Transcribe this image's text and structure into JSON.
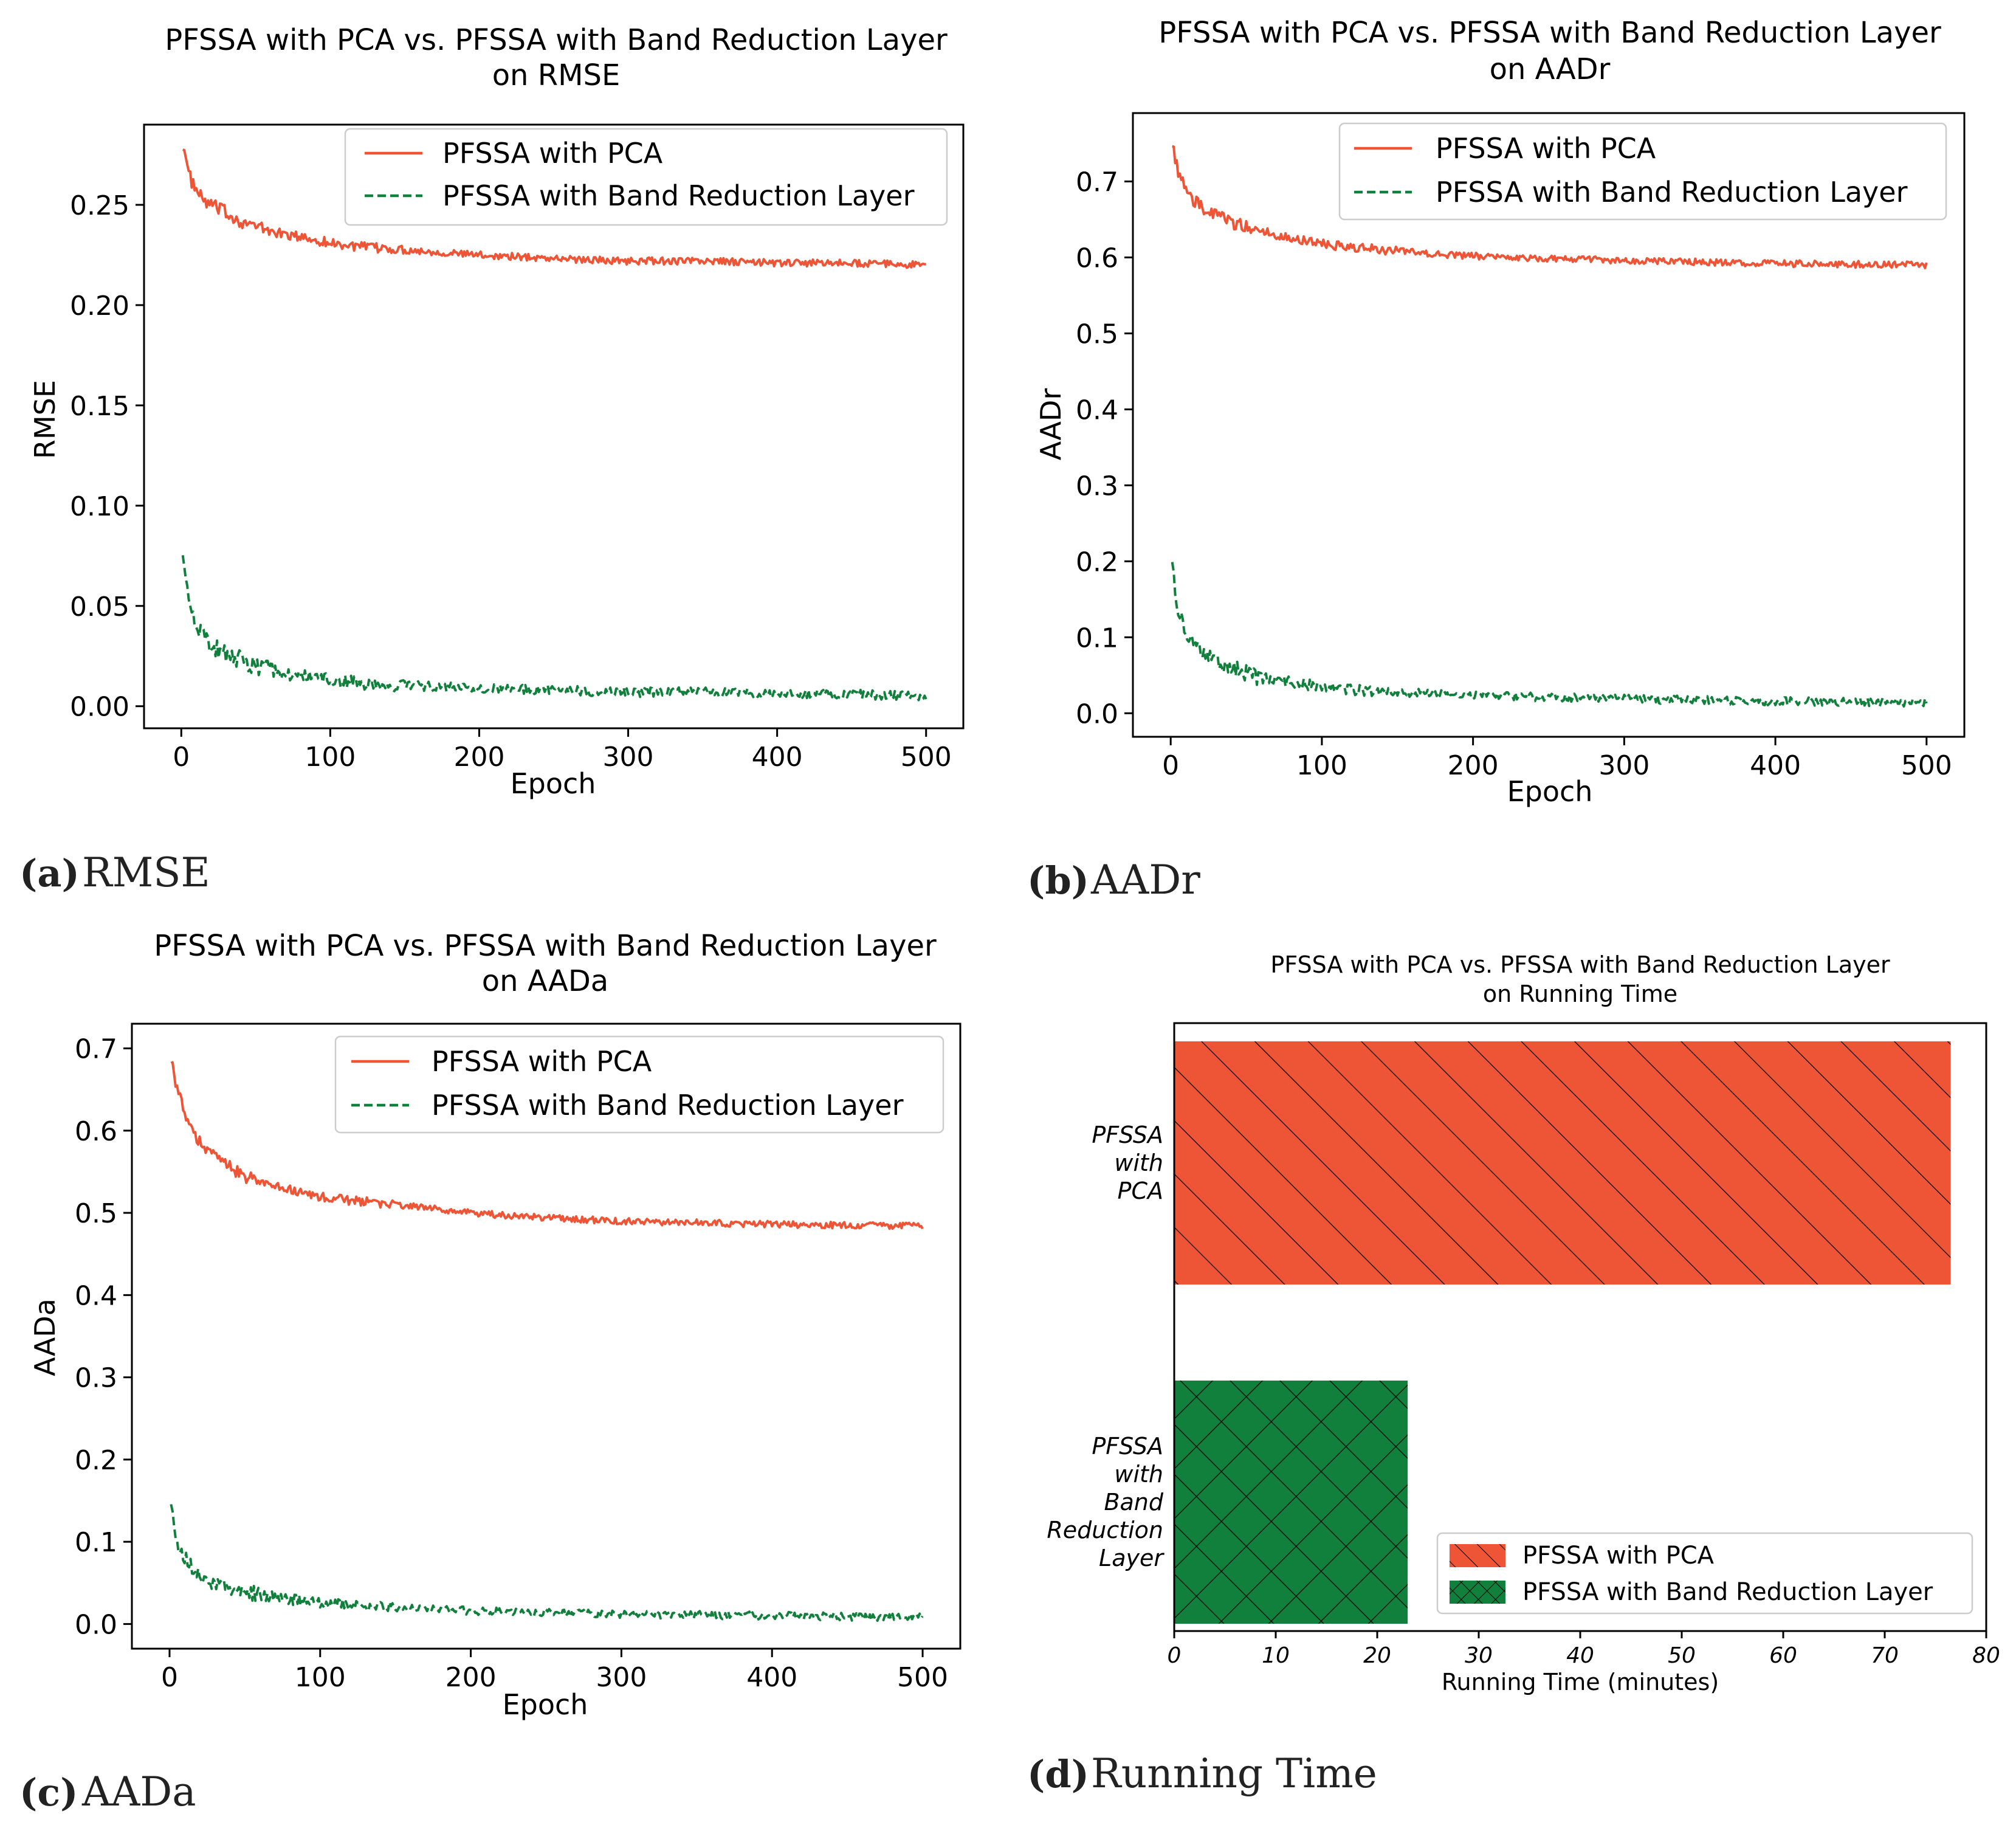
{
  "colors": {
    "pca": "#ee5536",
    "brl": "#11803c"
  },
  "charts": [
    {
      "id": "a",
      "type": "line",
      "title": [
        "PFSSA with PCA vs. PFSSA with Band Reduction Layer",
        "on RMSE"
      ],
      "xlabel": "Epoch",
      "ylabel": "RMSE",
      "xlim": [
        -25,
        525
      ],
      "ylim": [
        -0.011,
        0.29
      ],
      "xticks": [
        0,
        100,
        200,
        300,
        400,
        500
      ],
      "xtick_labels": [
        "0",
        "100",
        "200",
        "300",
        "400",
        "500"
      ],
      "yticks": [
        0.0,
        0.05,
        0.1,
        0.15,
        0.2,
        0.25
      ],
      "ytick_labels": [
        "0.00",
        "0.05",
        "0.10",
        "0.15",
        "0.20",
        "0.25"
      ],
      "legend": [
        "PFSSA with PCA",
        "PFSSA with Band Reduction Layer"
      ],
      "caption_letter": "(a)",
      "caption_text": "RMSE",
      "series": [
        {
          "name": "PFSSA with PCA",
          "style": "solid",
          "x": [
            1,
            5,
            10,
            15,
            20,
            30,
            40,
            50,
            60,
            70,
            80,
            100,
            120,
            140,
            160,
            180,
            200,
            230,
            260,
            300,
            350,
            400,
            450,
            500
          ],
          "y": [
            0.281,
            0.265,
            0.257,
            0.252,
            0.25,
            0.246,
            0.242,
            0.239,
            0.237,
            0.235,
            0.234,
            0.231,
            0.229,
            0.228,
            0.227,
            0.226,
            0.225,
            0.224,
            0.223,
            0.222,
            0.222,
            0.221,
            0.221,
            0.22
          ],
          "noise": 0.0022
        },
        {
          "name": "PFSSA with Band Reduction Layer",
          "style": "dashed",
          "x": [
            1,
            3,
            6,
            10,
            15,
            20,
            30,
            40,
            50,
            60,
            80,
            100,
            130,
            160,
            200,
            250,
            300,
            350,
            400,
            450,
            500
          ],
          "y": [
            0.08,
            0.06,
            0.05,
            0.042,
            0.035,
            0.03,
            0.026,
            0.023,
            0.02,
            0.018,
            0.015,
            0.013,
            0.011,
            0.01,
            0.009,
            0.008,
            0.007,
            0.007,
            0.006,
            0.006,
            0.005
          ],
          "noise": 0.003
        }
      ]
    },
    {
      "id": "b",
      "type": "line",
      "title": [
        "PFSSA with PCA vs. PFSSA with Band Reduction Layer",
        "on AADr"
      ],
      "xlabel": "Epoch",
      "ylabel": "AADr",
      "xlim": [
        -25,
        525
      ],
      "ylim": [
        -0.031,
        0.79
      ],
      "xticks": [
        0,
        100,
        200,
        300,
        400,
        500
      ],
      "xtick_labels": [
        "0",
        "100",
        "200",
        "300",
        "400",
        "500"
      ],
      "yticks": [
        0.0,
        0.1,
        0.2,
        0.3,
        0.4,
        0.5,
        0.6,
        0.7
      ],
      "ytick_labels": [
        "0.0",
        "0.1",
        "0.2",
        "0.3",
        "0.4",
        "0.5",
        "0.6",
        "0.7"
      ],
      "legend": [
        "PFSSA with PCA",
        "PFSSA with Band Reduction Layer"
      ],
      "caption_letter": "(b)",
      "caption_text": "AADr",
      "series": [
        {
          "name": "PFSSA with PCA",
          "style": "solid",
          "x": [
            1,
            5,
            10,
            15,
            20,
            30,
            40,
            50,
            60,
            70,
            80,
            100,
            120,
            140,
            160,
            180,
            200,
            230,
            260,
            300,
            350,
            400,
            450,
            500
          ],
          "y": [
            0.755,
            0.71,
            0.69,
            0.675,
            0.667,
            0.655,
            0.647,
            0.64,
            0.635,
            0.63,
            0.626,
            0.618,
            0.613,
            0.61,
            0.607,
            0.604,
            0.602,
            0.6,
            0.598,
            0.596,
            0.594,
            0.592,
            0.591,
            0.59
          ],
          "noise": 0.0055
        },
        {
          "name": "PFSSA with Band Reduction Layer",
          "style": "dashed",
          "x": [
            1,
            3,
            6,
            10,
            15,
            20,
            30,
            40,
            50,
            60,
            80,
            100,
            130,
            160,
            200,
            250,
            300,
            350,
            400,
            450,
            500
          ],
          "y": [
            0.21,
            0.16,
            0.13,
            0.11,
            0.09,
            0.078,
            0.068,
            0.06,
            0.052,
            0.047,
            0.04,
            0.035,
            0.03,
            0.027,
            0.024,
            0.021,
            0.019,
            0.017,
            0.016,
            0.015,
            0.014
          ],
          "noise": 0.007
        }
      ]
    },
    {
      "id": "c",
      "type": "line",
      "title": [
        "PFSSA with PCA vs. PFSSA with Band Reduction Layer",
        "on AADa"
      ],
      "xlabel": "Epoch",
      "ylabel": "AADa",
      "xlim": [
        -25,
        525
      ],
      "ylim": [
        -0.03,
        0.73
      ],
      "xticks": [
        0,
        100,
        200,
        300,
        400,
        500
      ],
      "xtick_labels": [
        "0",
        "100",
        "200",
        "300",
        "400",
        "500"
      ],
      "yticks": [
        0.0,
        0.1,
        0.2,
        0.3,
        0.4,
        0.5,
        0.6,
        0.7
      ],
      "ytick_labels": [
        "0.0",
        "0.1",
        "0.2",
        "0.3",
        "0.4",
        "0.5",
        "0.6",
        "0.7"
      ],
      "legend": [
        "PFSSA with PCA",
        "PFSSA with Band Reduction Layer"
      ],
      "caption_letter": "(c)",
      "caption_text": "AADa",
      "series": [
        {
          "name": "PFSSA with PCA",
          "style": "solid",
          "x": [
            1,
            5,
            10,
            15,
            20,
            30,
            40,
            50,
            60,
            70,
            80,
            100,
            120,
            140,
            160,
            180,
            200,
            230,
            260,
            300,
            350,
            400,
            450,
            500
          ],
          "y": [
            0.69,
            0.65,
            0.62,
            0.6,
            0.585,
            0.57,
            0.555,
            0.545,
            0.537,
            0.532,
            0.528,
            0.52,
            0.515,
            0.512,
            0.508,
            0.504,
            0.5,
            0.496,
            0.493,
            0.49,
            0.488,
            0.486,
            0.485,
            0.484
          ],
          "noise": 0.005
        },
        {
          "name": "PFSSA with Band Reduction Layer",
          "style": "dashed",
          "x": [
            1,
            3,
            6,
            10,
            15,
            20,
            30,
            40,
            50,
            60,
            80,
            100,
            130,
            160,
            200,
            250,
            300,
            350,
            400,
            450,
            500
          ],
          "y": [
            0.155,
            0.115,
            0.095,
            0.08,
            0.068,
            0.058,
            0.05,
            0.044,
            0.039,
            0.035,
            0.03,
            0.026,
            0.022,
            0.019,
            0.016,
            0.014,
            0.012,
            0.011,
            0.01,
            0.009,
            0.008
          ],
          "noise": 0.006
        }
      ]
    },
    {
      "id": "d",
      "type": "bar",
      "orientation": "horizontal",
      "title": [
        "PFSSA with PCA vs. PFSSA with Band Reduction Layer",
        "on Running Time"
      ],
      "xlabel": "Running Time (minutes)",
      "ylabel": "",
      "xlim": [
        0,
        80
      ],
      "xticks": [
        0,
        10,
        20,
        30,
        40,
        50,
        60,
        70,
        80
      ],
      "xtick_labels": [
        "0",
        "10",
        "20",
        "30",
        "40",
        "50",
        "60",
        "70",
        "80"
      ],
      "categories": [
        {
          "lines": [
            "PFSSA",
            "with",
            "PCA"
          ]
        },
        {
          "lines": [
            "PFSSA",
            "with",
            "Band",
            "Reduction",
            "Layer"
          ]
        }
      ],
      "values": [
        76.5,
        23.0
      ],
      "hatches": [
        "diagonal",
        "crosshatch"
      ],
      "legend": [
        "PFSSA with PCA",
        "PFSSA with Band Reduction Layer"
      ],
      "caption_letter": "(d)",
      "caption_text": "Running Time"
    }
  ]
}
